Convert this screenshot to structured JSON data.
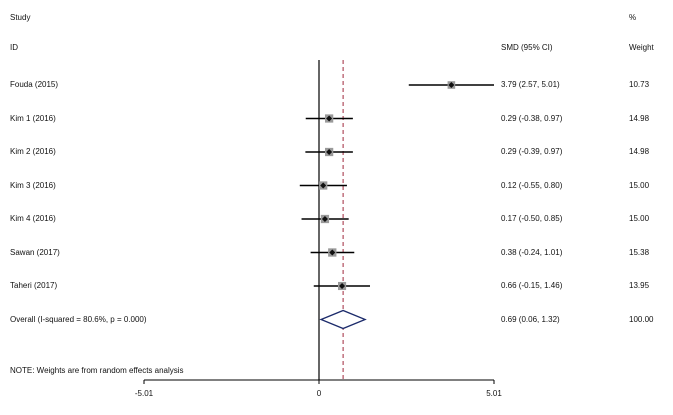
{
  "header": {
    "study_label": "Study",
    "percent_label": "%",
    "id_label": "ID",
    "estimate_header": "SMD (95% CI)",
    "weight_header": "Weight"
  },
  "chart_data": {
    "type": "forest",
    "x_ticks": [
      "-5.01",
      "0",
      "5.01"
    ],
    "x_range": [
      -5.01,
      5.01
    ],
    "null_line": 0,
    "pooled_line": 0.69,
    "studies": [
      {
        "label": "Fouda (2015)",
        "est": 3.79,
        "lo": 2.57,
        "hi": 5.01,
        "text": "3.79 (2.57, 5.01)",
        "weight": "10.73",
        "w": 10.73
      },
      {
        "label": "Kim 1 (2016)",
        "est": 0.29,
        "lo": -0.38,
        "hi": 0.97,
        "text": "0.29 (-0.38, 0.97)",
        "weight": "14.98",
        "w": 14.98
      },
      {
        "label": "Kim 2 (2016)",
        "est": 0.29,
        "lo": -0.39,
        "hi": 0.97,
        "text": "0.29 (-0.39, 0.97)",
        "weight": "14.98",
        "w": 14.98
      },
      {
        "label": "Kim 3 (2016)",
        "est": 0.12,
        "lo": -0.55,
        "hi": 0.8,
        "text": "0.12 (-0.55, 0.80)",
        "weight": "15.00",
        "w": 15.0
      },
      {
        "label": "Kim 4 (2016)",
        "est": 0.17,
        "lo": -0.5,
        "hi": 0.85,
        "text": "0.17 (-0.50, 0.85)",
        "weight": "15.00",
        "w": 15.0
      },
      {
        "label": "Sawan (2017)",
        "est": 0.38,
        "lo": -0.24,
        "hi": 1.01,
        "text": "0.38 (-0.24, 1.01)",
        "weight": "15.38",
        "w": 15.38
      },
      {
        "label": "Taheri (2017)",
        "est": 0.66,
        "lo": -0.15,
        "hi": 1.46,
        "text": "0.66 (-0.15, 1.46)",
        "weight": "13.95",
        "w": 13.95
      }
    ],
    "overall": {
      "label": "Overall  (I-squared = 80.6%, p = 0.000)",
      "est": 0.69,
      "lo": 0.06,
      "hi": 1.32,
      "text": "0.69 (0.06, 1.32)",
      "weight": "100.00"
    },
    "note": "NOTE: Weights are from random effects analysis"
  }
}
